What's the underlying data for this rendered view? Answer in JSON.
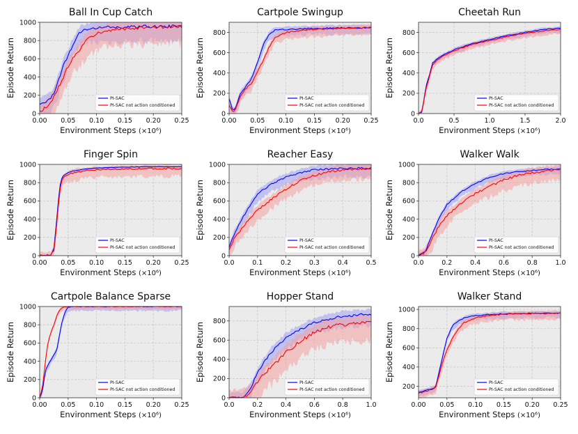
{
  "figure": {
    "ylabel": "Episode Return",
    "xlabel": "Environment Steps",
    "xlabel_suffix": "(×10⁶)",
    "legend": [
      "PI-SAC",
      "PI-SAC not action conditioned"
    ],
    "colors": {
      "pisac": "#0000ff",
      "nac": "#ff0000",
      "pisac_band": "#a0a0f4",
      "nac_band": "#f4a0a0"
    }
  },
  "chart_data": [
    {
      "type": "line",
      "title": "Ball In Cup Catch",
      "xlim": [
        0,
        0.25
      ],
      "ylim": [
        0,
        1000
      ],
      "xticks": [
        "0.00",
        "0.05",
        "0.10",
        "0.15",
        "0.20",
        "0.25"
      ],
      "yticks": [
        "0",
        "200",
        "400",
        "600",
        "800",
        "1000"
      ],
      "series": [
        {
          "name": "PI-SAC",
          "x": [
            0,
            0.01,
            0.02,
            0.03,
            0.04,
            0.05,
            0.06,
            0.07,
            0.08,
            0.09,
            0.1,
            0.12,
            0.15,
            0.2,
            0.25
          ],
          "y": [
            100,
            120,
            160,
            300,
            500,
            640,
            780,
            880,
            920,
            930,
            940,
            945,
            950,
            955,
            955
          ],
          "spread": 200
        },
        {
          "name": "PI-SAC not action conditioned",
          "x": [
            0,
            0.01,
            0.02,
            0.03,
            0.04,
            0.05,
            0.06,
            0.07,
            0.08,
            0.09,
            0.1,
            0.12,
            0.15,
            0.2,
            0.25
          ],
          "y": [
            20,
            60,
            130,
            250,
            380,
            520,
            620,
            700,
            780,
            840,
            880,
            910,
            930,
            945,
            950
          ],
          "spread": 230
        }
      ]
    },
    {
      "type": "line",
      "title": "Cartpole Swingup",
      "xlim": [
        0,
        0.25
      ],
      "ylim": [
        0,
        900
      ],
      "xticks": [
        "0.00",
        "0.05",
        "0.10",
        "0.15",
        "0.20",
        "0.25"
      ],
      "yticks": [
        "0",
        "200",
        "400",
        "600",
        "800"
      ],
      "series": [
        {
          "name": "PI-SAC",
          "x": [
            0,
            0.005,
            0.01,
            0.02,
            0.03,
            0.04,
            0.05,
            0.06,
            0.07,
            0.08,
            0.1,
            0.15,
            0.2,
            0.25
          ],
          "y": [
            150,
            50,
            30,
            200,
            270,
            350,
            500,
            680,
            780,
            820,
            830,
            840,
            845,
            845
          ],
          "spread": 80
        },
        {
          "name": "PI-SAC not action conditioned",
          "x": [
            0,
            0.005,
            0.01,
            0.02,
            0.03,
            0.04,
            0.05,
            0.06,
            0.07,
            0.08,
            0.1,
            0.15,
            0.2,
            0.25
          ],
          "y": [
            80,
            30,
            20,
            170,
            250,
            300,
            420,
            520,
            650,
            750,
            800,
            830,
            840,
            850
          ],
          "spread": 90
        }
      ]
    },
    {
      "type": "line",
      "title": "Cheetah Run",
      "xlim": [
        0,
        2.0
      ],
      "ylim": [
        0,
        900
      ],
      "xticks": [
        "0.0",
        "0.5",
        "1.0",
        "1.5",
        "2.0"
      ],
      "yticks": [
        "0",
        "200",
        "400",
        "600",
        "800"
      ],
      "series": [
        {
          "name": "PI-SAC",
          "x": [
            0,
            0.05,
            0.1,
            0.2,
            0.3,
            0.5,
            0.75,
            1.0,
            1.25,
            1.5,
            1.75,
            2.0
          ],
          "y": [
            0,
            20,
            250,
            500,
            560,
            630,
            690,
            730,
            770,
            800,
            830,
            840
          ],
          "spread": 50
        },
        {
          "name": "PI-SAC not action conditioned",
          "x": [
            0,
            0.05,
            0.1,
            0.2,
            0.3,
            0.5,
            0.75,
            1.0,
            1.25,
            1.5,
            1.75,
            2.0
          ],
          "y": [
            0,
            15,
            230,
            480,
            550,
            620,
            680,
            720,
            760,
            790,
            815,
            830
          ],
          "spread": 55
        }
      ]
    },
    {
      "type": "line",
      "title": "Finger Spin",
      "xlim": [
        0,
        0.25
      ],
      "ylim": [
        0,
        1000
      ],
      "xticks": [
        "0.00",
        "0.05",
        "0.10",
        "0.15",
        "0.20",
        "0.25"
      ],
      "yticks": [
        "0",
        "200",
        "400",
        "600",
        "800",
        "1000"
      ],
      "series": [
        {
          "name": "PI-SAC",
          "x": [
            0,
            0.02,
            0.025,
            0.03,
            0.035,
            0.04,
            0.05,
            0.06,
            0.08,
            0.1,
            0.15,
            0.2,
            0.25
          ],
          "y": [
            0,
            5,
            80,
            400,
            750,
            870,
            910,
            930,
            950,
            960,
            970,
            975,
            975
          ],
          "spread": 30
        },
        {
          "name": "PI-SAC not action conditioned",
          "x": [
            0,
            0.02,
            0.025,
            0.03,
            0.035,
            0.04,
            0.05,
            0.06,
            0.08,
            0.1,
            0.15,
            0.2,
            0.25
          ],
          "y": [
            0,
            5,
            60,
            350,
            700,
            850,
            890,
            910,
            930,
            940,
            950,
            955,
            955
          ],
          "spread": 110
        }
      ]
    },
    {
      "type": "line",
      "title": "Reacher Easy",
      "xlim": [
        0,
        0.5
      ],
      "ylim": [
        0,
        1000
      ],
      "xticks": [
        "0.0",
        "0.1",
        "0.2",
        "0.3",
        "0.4",
        "0.5"
      ],
      "yticks": [
        "0",
        "200",
        "400",
        "600",
        "800",
        "1000"
      ],
      "series": [
        {
          "name": "PI-SAC",
          "x": [
            0,
            0.02,
            0.05,
            0.08,
            0.1,
            0.15,
            0.2,
            0.25,
            0.3,
            0.35,
            0.4,
            0.45,
            0.5
          ],
          "y": [
            100,
            250,
            430,
            580,
            680,
            790,
            860,
            910,
            940,
            950,
            955,
            960,
            960
          ],
          "spread": 120
        },
        {
          "name": "PI-SAC not action conditioned",
          "x": [
            0,
            0.02,
            0.05,
            0.08,
            0.1,
            0.15,
            0.2,
            0.25,
            0.3,
            0.35,
            0.4,
            0.45,
            0.5
          ],
          "y": [
            60,
            200,
            320,
            430,
            500,
            620,
            730,
            820,
            880,
            920,
            940,
            950,
            955
          ],
          "spread": 140
        }
      ]
    },
    {
      "type": "line",
      "title": "Walker Walk",
      "xlim": [
        0,
        1.0
      ],
      "ylim": [
        0,
        1000
      ],
      "xticks": [
        "0.0",
        "0.2",
        "0.4",
        "0.6",
        "0.8",
        "1.0"
      ],
      "yticks": [
        "0",
        "200",
        "400",
        "600",
        "800",
        "1000"
      ],
      "series": [
        {
          "name": "PI-SAC",
          "x": [
            0,
            0.05,
            0.1,
            0.15,
            0.2,
            0.3,
            0.4,
            0.5,
            0.6,
            0.7,
            0.8,
            0.9,
            1.0
          ],
          "y": [
            0,
            50,
            250,
            430,
            560,
            700,
            790,
            860,
            900,
            920,
            935,
            945,
            950
          ],
          "spread": 70
        },
        {
          "name": "PI-SAC not action conditioned",
          "x": [
            0,
            0.05,
            0.1,
            0.15,
            0.2,
            0.3,
            0.4,
            0.5,
            0.6,
            0.7,
            0.8,
            0.9,
            1.0
          ],
          "y": [
            0,
            40,
            200,
            340,
            440,
            580,
            680,
            760,
            830,
            880,
            910,
            930,
            945
          ],
          "spread": 150
        }
      ]
    },
    {
      "type": "line",
      "title": "Cartpole Balance Sparse",
      "xlim": [
        0,
        0.25
      ],
      "ylim": [
        0,
        1000
      ],
      "xticks": [
        "0.00",
        "0.05",
        "0.10",
        "0.15",
        "0.20",
        "0.25"
      ],
      "yticks": [
        "0",
        "200",
        "400",
        "600",
        "800",
        "1000"
      ],
      "series": [
        {
          "name": "PI-SAC",
          "x": [
            0,
            0.005,
            0.01,
            0.02,
            0.03,
            0.035,
            0.04,
            0.045,
            0.05,
            0.06,
            0.1,
            0.15,
            0.2,
            0.25
          ],
          "y": [
            0,
            80,
            300,
            420,
            520,
            700,
            850,
            950,
            990,
            1000,
            1000,
            1000,
            1000,
            1000
          ],
          "spread": 60
        },
        {
          "name": "PI-SAC not action conditioned",
          "x": [
            0,
            0.005,
            0.01,
            0.015,
            0.02,
            0.025,
            0.03,
            0.035,
            0.04,
            0.05,
            0.1,
            0.15,
            0.2,
            0.25
          ],
          "y": [
            0,
            120,
            400,
            620,
            720,
            800,
            900,
            960,
            990,
            1000,
            1000,
            1000,
            1000,
            1000
          ],
          "spread": 40
        }
      ]
    },
    {
      "type": "line",
      "title": "Hopper Stand",
      "xlim": [
        0,
        1.0
      ],
      "ylim": [
        0,
        950
      ],
      "xticks": [
        "0.0",
        "0.2",
        "0.4",
        "0.6",
        "0.8",
        "1.0"
      ],
      "yticks": [
        "0",
        "200",
        "400",
        "600",
        "800"
      ],
      "series": [
        {
          "name": "PI-SAC",
          "x": [
            0,
            0.1,
            0.15,
            0.2,
            0.25,
            0.3,
            0.4,
            0.5,
            0.6,
            0.7,
            0.8,
            0.9,
            1.0
          ],
          "y": [
            0,
            5,
            100,
            260,
            380,
            480,
            620,
            710,
            780,
            820,
            850,
            860,
            870
          ],
          "spread": 150
        },
        {
          "name": "PI-SAC not action conditioned",
          "x": [
            0,
            0.1,
            0.15,
            0.2,
            0.25,
            0.3,
            0.4,
            0.5,
            0.6,
            0.7,
            0.8,
            0.9,
            1.0
          ],
          "y": [
            0,
            5,
            60,
            160,
            260,
            320,
            470,
            590,
            680,
            740,
            760,
            770,
            780
          ],
          "spread": 230
        }
      ]
    },
    {
      "type": "line",
      "title": "Walker Stand",
      "xlim": [
        0,
        0.25
      ],
      "ylim": [
        80,
        1030
      ],
      "xticks": [
        "0.00",
        "0.05",
        "0.10",
        "0.15",
        "0.20",
        "0.25"
      ],
      "yticks": [
        "200",
        "400",
        "600",
        "800",
        "1000"
      ],
      "series": [
        {
          "name": "PI-SAC",
          "x": [
            0,
            0.01,
            0.02,
            0.03,
            0.04,
            0.05,
            0.06,
            0.07,
            0.08,
            0.09,
            0.1,
            0.12,
            0.15,
            0.2,
            0.25
          ],
          "y": [
            140,
            150,
            170,
            190,
            450,
            700,
            830,
            880,
            910,
            930,
            935,
            945,
            955,
            960,
            960
          ],
          "spread": 60
        },
        {
          "name": "PI-SAC not action conditioned",
          "x": [
            0,
            0.01,
            0.02,
            0.03,
            0.04,
            0.05,
            0.06,
            0.07,
            0.08,
            0.09,
            0.1,
            0.12,
            0.15,
            0.2,
            0.25
          ],
          "y": [
            130,
            140,
            160,
            180,
            400,
            580,
            700,
            800,
            860,
            890,
            910,
            930,
            950,
            955,
            960
          ],
          "spread": 80
        }
      ]
    }
  ]
}
